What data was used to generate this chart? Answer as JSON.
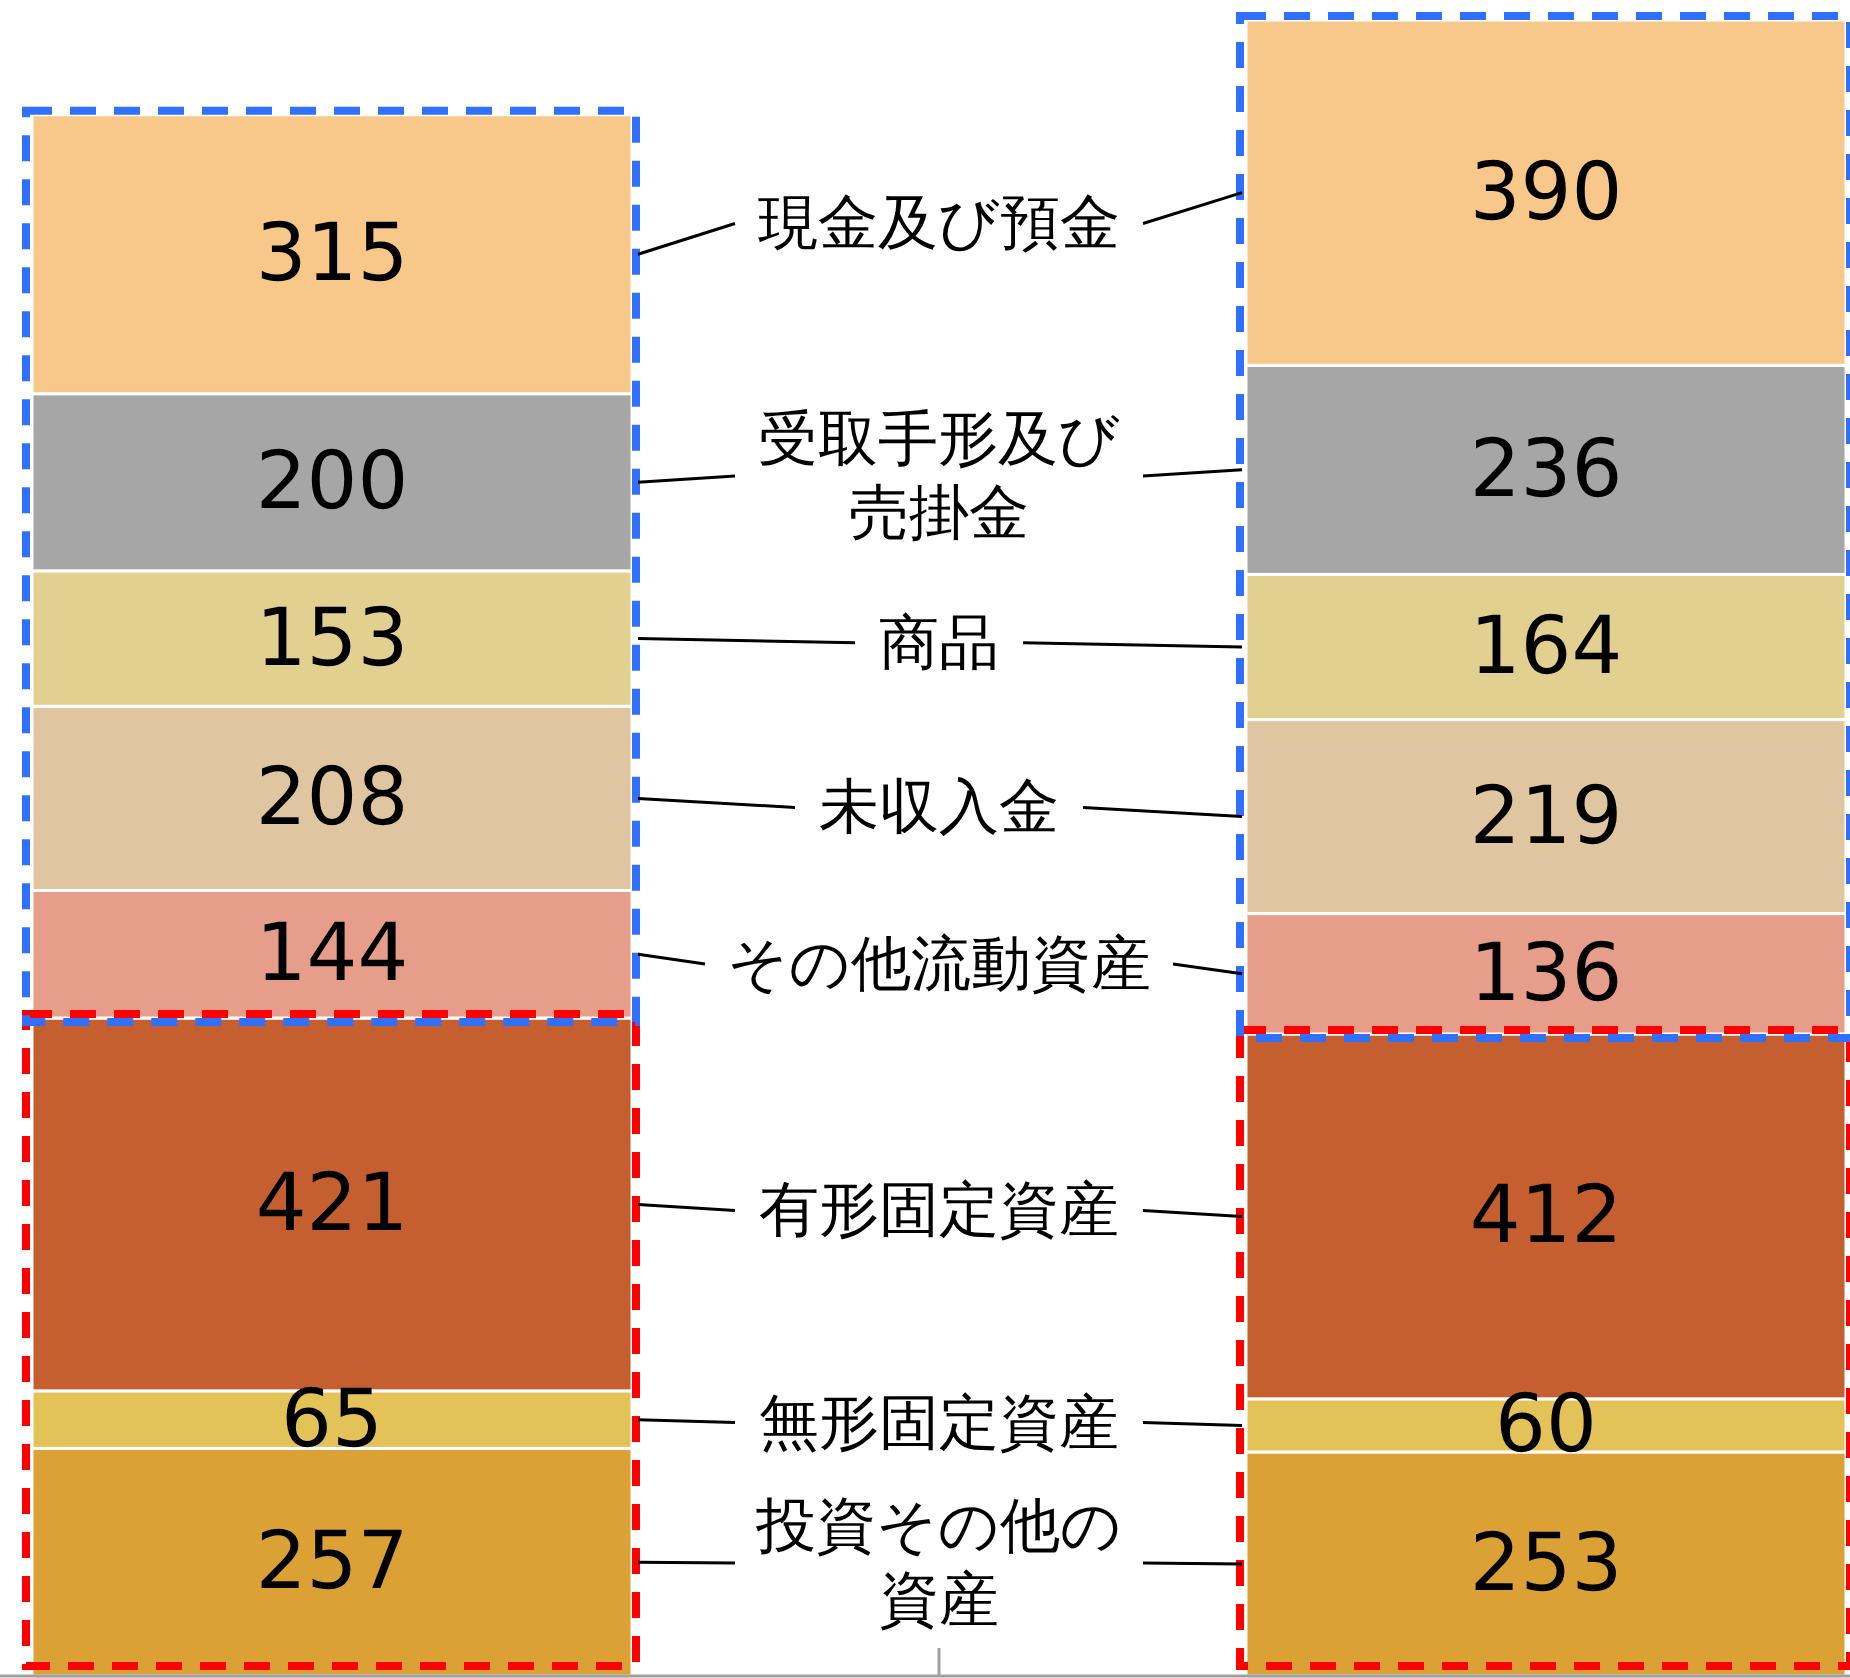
{
  "chart_data": {
    "type": "bar",
    "stacked": true,
    "categories": [
      null,
      null
    ],
    "data_labels": true,
    "series": [
      {
        "name": "投資その他の資産",
        "color": "#dca134",
        "values": [
          257,
          253
        ]
      },
      {
        "name": "無形固定資産",
        "color": "#e3c358",
        "values": [
          65,
          60
        ]
      },
      {
        "name": "有形固定資産",
        "color": "#c55f30",
        "values": [
          421,
          412
        ]
      },
      {
        "name": "その他流動資産",
        "color": "#e69e8b",
        "values": [
          144,
          136
        ]
      },
      {
        "name": "未収入金",
        "color": "#dfc6a0",
        "values": [
          208,
          219
        ]
      },
      {
        "name": "商品",
        "color": "#e2d091",
        "values": [
          153,
          164
        ]
      },
      {
        "name": "受取手形及び売掛金",
        "color": "#a6a6a6",
        "values": [
          200,
          236
        ]
      },
      {
        "name": "現金及び預金",
        "color": "#f8c88b",
        "values": [
          315,
          390
        ]
      }
    ]
  }
}
